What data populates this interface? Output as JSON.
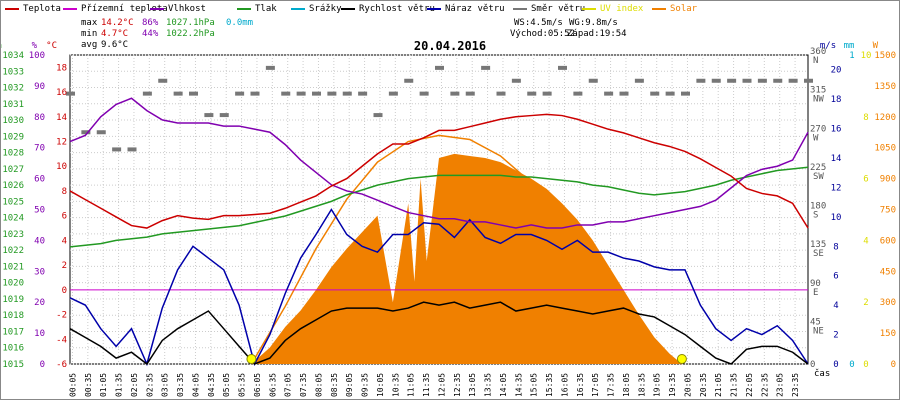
{
  "chart_data": {
    "type": "line",
    "title": "20.04.2016",
    "time_label": "čas",
    "legend": [
      {
        "key": "teplota",
        "label": "Teplota",
        "color": "#cc0000"
      },
      {
        "key": "pocitova",
        "label": "Přízemní teplota",
        "color": "#cc00cc"
      },
      {
        "key": "vlhkost",
        "label": "Vlhkost",
        "color": "#8000b0"
      },
      {
        "key": "tlak",
        "label": "Tlak",
        "color": "#229922"
      },
      {
        "key": "srazky",
        "label": "Srážky",
        "color": "#00aacc"
      },
      {
        "key": "rychlost",
        "label": "Rychlost větru",
        "color": "#000000"
      },
      {
        "key": "naraz",
        "label": "Náraz větru",
        "color": "#0000aa"
      },
      {
        "key": "smer",
        "label": "Směr větru",
        "color": "#777777"
      },
      {
        "key": "uv",
        "label": "UV index",
        "color": "#dddd00"
      },
      {
        "key": "solar",
        "label": "Solar",
        "color": "#f08000"
      }
    ],
    "stats": {
      "max": {
        "label": "max",
        "teplota": "14.2°C",
        "vlhkost": "86%",
        "tlak": "1027.1hPa",
        "srazky": "0.0mm"
      },
      "min": {
        "label": "min",
        "teplota": "4.7°C",
        "vlhkost": "44%",
        "tlak": "1022.2hPa"
      },
      "avg": {
        "label": "avg",
        "teplota": "9.6°C"
      }
    },
    "wind_info": {
      "ws": "WS:4.5m/s",
      "wg": "WG:9.8m/s",
      "sunrise": "Východ:05:52",
      "sunset": "Západ:19:54"
    },
    "axes": {
      "hpa": {
        "unit": "hPa",
        "ticks": [
          "1034",
          "1033",
          "1032",
          "1031",
          "1030",
          "1029",
          "1028",
          "1027",
          "1026",
          "1025",
          "1024",
          "1023",
          "1022",
          "1021",
          "1020",
          "1019",
          "1018",
          "1017",
          "1016",
          "1015"
        ],
        "range": [
          1015,
          1034
        ]
      },
      "percent": {
        "unit": "%",
        "ticks": [
          "100",
          "90",
          "80",
          "70",
          "60",
          "50",
          "40",
          "30",
          "20",
          "10",
          "0"
        ],
        "range": [
          0,
          100
        ]
      },
      "temp": {
        "unit": "°C",
        "ticks": [
          "18",
          "16",
          "14",
          "12",
          "10",
          "8",
          "6",
          "4",
          "2",
          "0",
          "-2",
          "-4",
          "-6"
        ],
        "range": [
          -6,
          19
        ]
      },
      "direction": {
        "ticks": [
          "360 N",
          "315 NW",
          "270 W",
          "225 SW",
          "180 S",
          "135 SE",
          "90 E",
          "45 NE",
          "0"
        ],
        "range": [
          0,
          360
        ]
      },
      "ms": {
        "unit": "m/s",
        "ticks": [
          "20",
          "18",
          "16",
          "14",
          "12",
          "10",
          "8",
          "6",
          "4",
          "2",
          "0"
        ],
        "range": [
          0,
          21
        ]
      },
      "mm": {
        "unit": "mm",
        "ticks": [
          "1",
          "0"
        ],
        "range": [
          0,
          1
        ]
      },
      "uvi": {
        "unit": "",
        "ticks": [
          "10",
          "8",
          "6",
          "4",
          "2",
          "0"
        ],
        "range": [
          0,
          10
        ]
      },
      "solar": {
        "unit": "W",
        "ticks": [
          "1500",
          "1350",
          "1200",
          "1050",
          "900",
          "750",
          "600",
          "450",
          "300",
          "150",
          "0"
        ],
        "range": [
          0,
          1500
        ]
      }
    },
    "x_labels": [
      "00:05",
      "00:35",
      "01:05",
      "01:35",
      "02:05",
      "02:35",
      "03:05",
      "03:35",
      "04:05",
      "04:35",
      "05:05",
      "05:35",
      "06:05",
      "06:35",
      "07:05",
      "07:35",
      "08:05",
      "08:35",
      "09:05",
      "09:35",
      "10:05",
      "10:35",
      "11:05",
      "11:35",
      "12:05",
      "12:35",
      "13:05",
      "13:35",
      "14:05",
      "14:35",
      "15:05",
      "15:35",
      "16:05",
      "16:35",
      "17:05",
      "17:35",
      "18:05",
      "18:35",
      "19:05",
      "19:35",
      "20:05",
      "20:35",
      "21:05",
      "21:35",
      "22:05",
      "22:35",
      "23:05",
      "23:35"
    ],
    "series": {
      "teplota": {
        "x": [
          0,
          0.5,
          1,
          1.5,
          2,
          2.5,
          3,
          3.5,
          4,
          4.5,
          5,
          5.5,
          6,
          6.5,
          7,
          7.5,
          8,
          8.5,
          9,
          9.5,
          10,
          10.5,
          11,
          11.5,
          12,
          12.5,
          13,
          13.5,
          14,
          14.5,
          15,
          15.5,
          16,
          16.5,
          17,
          17.5,
          18,
          18.5,
          19,
          19.5,
          20,
          20.5,
          21,
          21.5,
          22,
          22.5,
          23,
          23.5,
          24
        ],
        "y": [
          8.0,
          7.3,
          6.6,
          5.9,
          5.2,
          5.0,
          5.6,
          6.0,
          5.8,
          5.7,
          6.0,
          6.0,
          6.1,
          6.2,
          6.6,
          7.1,
          7.6,
          8.4,
          9.0,
          10.0,
          11.0,
          11.8,
          11.8,
          12.3,
          12.9,
          12.9,
          13.2,
          13.5,
          13.8,
          14.0,
          14.1,
          14.2,
          14.1,
          13.8,
          13.4,
          13.0,
          12.7,
          12.3,
          11.9,
          11.6,
          11.2,
          10.6,
          9.9,
          9.2,
          8.2,
          7.8,
          7.6,
          7.0,
          5.0
        ]
      },
      "vlhkost": {
        "x": [
          0,
          0.5,
          1,
          1.5,
          2,
          2.5,
          3,
          3.5,
          4,
          4.5,
          5,
          5.5,
          6,
          6.5,
          7,
          7.5,
          8,
          8.5,
          9,
          9.5,
          10,
          10.5,
          11,
          11.5,
          12,
          12.5,
          13,
          13.5,
          14,
          14.5,
          15,
          15.5,
          16,
          16.5,
          17,
          17.5,
          18,
          18.5,
          19,
          19.5,
          20,
          20.5,
          21,
          21.5,
          22,
          22.5,
          23,
          23.5,
          24
        ],
        "y": [
          72,
          74,
          80,
          84,
          86,
          82,
          79,
          78,
          78,
          78,
          77,
          77,
          76,
          75,
          71,
          66,
          62,
          58,
          56,
          55,
          53,
          51,
          49,
          48,
          47,
          47,
          46,
          46,
          45,
          44,
          45,
          44,
          44,
          45,
          45,
          46,
          46,
          47,
          48,
          49,
          50,
          51,
          53,
          57,
          61,
          63,
          64,
          66,
          75
        ]
      },
      "tlak": {
        "x": [
          0,
          0.5,
          1,
          1.5,
          2,
          2.5,
          3,
          3.5,
          4,
          4.5,
          5,
          5.5,
          6,
          6.5,
          7,
          7.5,
          8,
          8.5,
          9,
          9.5,
          10,
          10.5,
          11,
          11.5,
          12,
          12.5,
          13,
          13.5,
          14,
          14.5,
          15,
          15.5,
          16,
          16.5,
          17,
          17.5,
          18,
          18.5,
          19,
          19.5,
          20,
          20.5,
          21,
          21.5,
          22,
          22.5,
          23,
          23.5,
          24
        ],
        "y": [
          1022.2,
          1022.3,
          1022.4,
          1022.6,
          1022.7,
          1022.8,
          1023.0,
          1023.1,
          1023.2,
          1023.3,
          1023.4,
          1023.5,
          1023.7,
          1023.9,
          1024.1,
          1024.4,
          1024.7,
          1025.0,
          1025.4,
          1025.7,
          1026.0,
          1026.2,
          1026.4,
          1026.5,
          1026.6,
          1026.6,
          1026.6,
          1026.6,
          1026.6,
          1026.5,
          1026.5,
          1026.4,
          1026.3,
          1026.2,
          1026.0,
          1025.9,
          1025.7,
          1025.5,
          1025.4,
          1025.5,
          1025.6,
          1025.8,
          1026.0,
          1026.3,
          1026.5,
          1026.7,
          1026.9,
          1027.0,
          1027.1
        ]
      },
      "rychlost": {
        "x": [
          0,
          0.5,
          1,
          1.5,
          2,
          2.5,
          3,
          3.5,
          4,
          4.5,
          5,
          5.5,
          6,
          6.5,
          7,
          7.5,
          8,
          8.5,
          9,
          9.5,
          10,
          10.5,
          11,
          11.5,
          12,
          12.5,
          13,
          13.5,
          14,
          14.5,
          15,
          15.5,
          16,
          16.5,
          17,
          17.5,
          18,
          18.5,
          19,
          19.5,
          20,
          20.5,
          21,
          21.5,
          22,
          22.5,
          23,
          23.5,
          24
        ],
        "y": [
          2.4,
          1.8,
          1.2,
          0.4,
          0.8,
          0.0,
          1.6,
          2.4,
          3.0,
          3.6,
          2.4,
          1.2,
          0.0,
          0.4,
          1.6,
          2.4,
          3.0,
          3.6,
          3.8,
          3.8,
          3.8,
          3.6,
          3.8,
          4.2,
          4.0,
          4.2,
          3.8,
          4.0,
          4.2,
          3.6,
          3.8,
          4.0,
          3.8,
          3.6,
          3.4,
          3.6,
          3.8,
          3.4,
          3.2,
          2.6,
          2.0,
          1.2,
          0.4,
          0.0,
          1.0,
          1.2,
          1.2,
          0.8,
          0.0
        ]
      },
      "naraz": {
        "x": [
          0,
          0.5,
          1,
          1.5,
          2,
          2.5,
          3,
          3.5,
          4,
          4.5,
          5,
          5.5,
          6,
          6.5,
          7,
          7.5,
          8,
          8.5,
          9,
          9.5,
          10,
          10.5,
          11,
          11.5,
          12,
          12.5,
          13,
          13.5,
          14,
          14.5,
          15,
          15.5,
          16,
          16.5,
          17,
          17.5,
          18,
          18.5,
          19,
          19.5,
          20,
          20.5,
          21,
          21.5,
          22,
          22.5,
          23,
          23.5,
          24
        ],
        "y": [
          4.5,
          4.0,
          2.4,
          1.2,
          2.4,
          0.0,
          3.8,
          6.4,
          8.0,
          7.2,
          6.4,
          4.0,
          0.0,
          2.0,
          4.8,
          7.2,
          8.8,
          10.5,
          8.8,
          8.0,
          7.6,
          8.8,
          8.8,
          9.6,
          9.5,
          8.6,
          9.8,
          8.6,
          8.2,
          8.8,
          8.8,
          8.4,
          7.8,
          8.4,
          7.6,
          7.6,
          7.2,
          7.0,
          6.6,
          6.4,
          6.4,
          4.0,
          2.4,
          1.6,
          2.4,
          2.0,
          2.6,
          1.6,
          0.0
        ]
      },
      "smer": {
        "x": [
          0,
          0.5,
          1,
          1.5,
          2,
          2.5,
          3,
          3.5,
          4,
          4.5,
          5,
          5.5,
          6,
          6.5,
          7,
          7.5,
          8,
          8.5,
          9,
          9.5,
          10,
          10.5,
          11,
          11.5,
          12,
          12.5,
          13,
          13.5,
          14,
          14.5,
          15,
          15.5,
          16,
          16.5,
          17,
          17.5,
          18,
          18.5,
          19,
          19.5,
          20,
          20.5,
          21,
          21.5,
          22,
          22.5,
          23,
          23.5,
          24
        ],
        "y": [
          315,
          270,
          270,
          250,
          250,
          315,
          330,
          315,
          315,
          290,
          290,
          315,
          315,
          345,
          315,
          315,
          315,
          315,
          315,
          315,
          290,
          315,
          330,
          315,
          345,
          315,
          315,
          345,
          315,
          330,
          315,
          315,
          345,
          315,
          330,
          315,
          315,
          330,
          315,
          315,
          315,
          330,
          330,
          330,
          330,
          330,
          330,
          330,
          330
        ]
      },
      "solar": {
        "x": [
          5.9,
          6.5,
          7,
          7.5,
          8,
          8.5,
          9,
          9.5,
          10,
          10.5,
          11,
          11.2,
          11.4,
          11.6,
          12,
          12.5,
          13,
          13.5,
          14,
          14.5,
          15,
          15.5,
          16,
          16.5,
          17,
          17.5,
          18,
          18.5,
          19,
          19.5,
          19.9
        ],
        "y": [
          0,
          80,
          180,
          260,
          360,
          470,
          560,
          640,
          720,
          300,
          780,
          400,
          900,
          500,
          1000,
          1020,
          1010,
          1000,
          980,
          940,
          900,
          850,
          780,
          700,
          600,
          480,
          360,
          240,
          130,
          50,
          0
        ]
      },
      "solar_clear": {
        "x": [
          5.9,
          7,
          8,
          9,
          10,
          11,
          12,
          13,
          14,
          15,
          16,
          17,
          18,
          19,
          19.9
        ],
        "y": [
          0,
          280,
          560,
          800,
          980,
          1080,
          1110,
          1090,
          1010,
          880,
          700,
          490,
          270,
          70,
          0
        ]
      },
      "uv_markers": {
        "x": [
          5.9,
          19.9
        ],
        "y": [
          0,
          0
        ]
      }
    }
  }
}
